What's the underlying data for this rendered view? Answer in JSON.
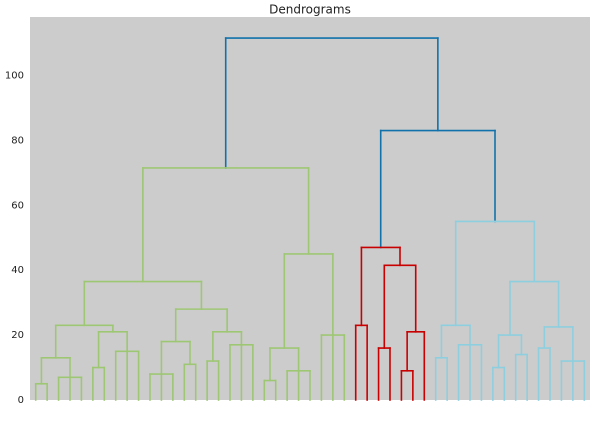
{
  "chart_data": {
    "type": "dendrogram",
    "title": "Dendrograms",
    "ylim": [
      0,
      118
    ],
    "yticks": [
      0,
      20,
      40,
      60,
      80,
      100
    ],
    "grid": false,
    "tree": {
      "h": 111.5,
      "color": "#1172ab",
      "children": [
        {
          "h": 71.5,
          "color": "#9ec774",
          "children": [
            {
              "h": 36.5,
              "children": [
                {
                  "h": 23,
                  "children": [
                    {
                      "h": 13,
                      "children": [
                        {
                          "h": 5,
                          "children": [
                            0,
                            0
                          ]
                        },
                        {
                          "h": 7,
                          "children": [
                            0,
                            0,
                            0
                          ]
                        }
                      ]
                    },
                    {
                      "h": 21,
                      "children": [
                        {
                          "h": 10,
                          "children": [
                            0,
                            0
                          ]
                        },
                        {
                          "h": 15,
                          "children": [
                            0,
                            0,
                            0
                          ]
                        }
                      ]
                    }
                  ]
                },
                {
                  "h": 28,
                  "children": [
                    {
                      "h": 18,
                      "children": [
                        {
                          "h": 8,
                          "children": [
                            0,
                            0,
                            0
                          ]
                        },
                        {
                          "h": 11,
                          "children": [
                            0,
                            0
                          ]
                        }
                      ]
                    },
                    {
                      "h": 21,
                      "children": [
                        {
                          "h": 12,
                          "children": [
                            0,
                            0
                          ]
                        },
                        {
                          "h": 17,
                          "children": [
                            0,
                            0,
                            0
                          ]
                        }
                      ]
                    }
                  ]
                }
              ]
            },
            {
              "h": 45,
              "children": [
                {
                  "h": 16,
                  "children": [
                    {
                      "h": 6,
                      "children": [
                        0,
                        0
                      ]
                    },
                    {
                      "h": 9,
                      "children": [
                        0,
                        0,
                        0
                      ]
                    }
                  ]
                },
                {
                  "h": 20,
                  "children": [
                    0,
                    0,
                    0
                  ]
                }
              ]
            }
          ]
        },
        {
          "h": 83,
          "color": "#1172ab",
          "children": [
            {
              "h": 47,
              "color": "#c80000",
              "children": [
                {
                  "h": 23,
                  "children": [
                    0,
                    0
                  ]
                },
                {
                  "h": 41.5,
                  "children": [
                    {
                      "h": 16,
                      "children": [
                        0,
                        0
                      ]
                    },
                    {
                      "h": 21,
                      "children": [
                        {
                          "h": 9,
                          "children": [
                            0,
                            0
                          ]
                        },
                        0
                      ]
                    }
                  ]
                }
              ]
            },
            {
              "h": 55,
              "color": "#8ecfdf",
              "children": [
                {
                  "h": 23,
                  "children": [
                    {
                      "h": 13,
                      "children": [
                        0,
                        0
                      ]
                    },
                    {
                      "h": 17,
                      "children": [
                        0,
                        0,
                        0
                      ]
                    }
                  ]
                },
                {
                  "h": 36.5,
                  "children": [
                    {
                      "h": 20,
                      "children": [
                        {
                          "h": 10,
                          "children": [
                            0,
                            0
                          ]
                        },
                        {
                          "h": 14,
                          "children": [
                            0,
                            0
                          ]
                        }
                      ]
                    },
                    {
                      "h": 22.5,
                      "children": [
                        {
                          "h": 16,
                          "children": [
                            0,
                            0
                          ]
                        },
                        {
                          "h": 12,
                          "children": [
                            0,
                            0,
                            0
                          ]
                        }
                      ]
                    }
                  ]
                }
              ]
            }
          ]
        }
      ]
    }
  }
}
